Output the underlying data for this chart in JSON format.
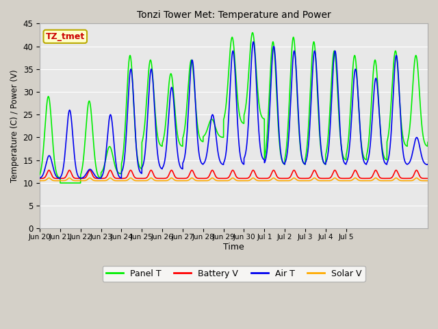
{
  "title": "Tonzi Tower Met: Temperature and Power",
  "xlabel": "Time",
  "ylabel": "Temperature (C) / Power (V)",
  "ylim": [
    0,
    45
  ],
  "yticks": [
    0,
    5,
    10,
    15,
    20,
    25,
    30,
    35,
    40,
    45
  ],
  "annotation_text": "TZ_tmet",
  "annotation_bg": "#ffffcc",
  "annotation_border": "#bbaa00",
  "annotation_text_color": "#cc0000",
  "fig_bg_color": "#d4d0c8",
  "plot_bg_color": "#e8e8e8",
  "grid_color": "#ffffff",
  "panel_t_color": "#00ee00",
  "battery_v_color": "#ff0000",
  "air_t_color": "#0000ee",
  "solar_v_color": "#ffaa00",
  "x_tick_labels": [
    "Jun 20",
    "Jun 21",
    "Jun 22",
    "Jun 23",
    "Jun 24",
    "Jun 25",
    "Jun 26",
    "Jun 27",
    "Jun 28",
    "Jun 29",
    "Jun 30",
    "Jul 1",
    "Jul 2",
    "Jul 3",
    "Jul 4",
    "Jul 5"
  ],
  "line_width": 1.2
}
